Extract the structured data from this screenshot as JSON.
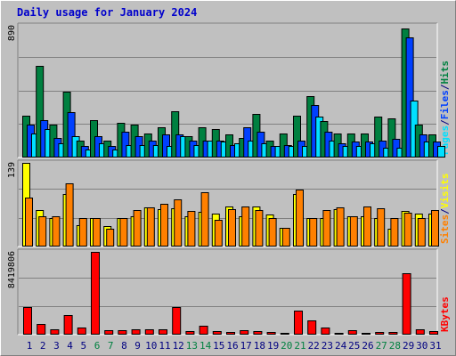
{
  "title": "Daily usage for January 2024",
  "colors": {
    "hits": "#008040",
    "files": "#0040ff",
    "pages": "#00e0ff",
    "visits": "#ffff00",
    "sites": "#ff8000",
    "kbytes": "#ff0000",
    "weekend_day": "#008040",
    "weekday": "#000080"
  },
  "chart_data": [
    {
      "type": "bar",
      "panel": "hits-files-pages",
      "ymax_label": "890",
      "ylim": [
        0,
        890
      ],
      "grid": true,
      "right_labels": [
        {
          "text": "Pages",
          "color": "#00e0ff"
        },
        {
          "text": "/",
          "color": "#000080"
        },
        {
          "text": "Files",
          "color": "#0040ff"
        },
        {
          "text": "/",
          "color": "#000080"
        },
        {
          "text": "Hits",
          "color": "#008040"
        }
      ],
      "categories": [
        "1",
        "2",
        "3",
        "4",
        "5",
        "6",
        "7",
        "8",
        "9",
        "10",
        "11",
        "12",
        "13",
        "14",
        "15",
        "16",
        "17",
        "18",
        "19",
        "20",
        "21",
        "22",
        "23",
        "24",
        "25",
        "26",
        "27",
        "28",
        "29",
        "30",
        "31"
      ],
      "series": [
        {
          "name": "Hits",
          "color": "#008040",
          "values": [
            280,
            620,
            220,
            440,
            110,
            250,
            110,
            230,
            220,
            160,
            200,
            310,
            140,
            200,
            190,
            150,
            130,
            290,
            110,
            160,
            280,
            410,
            240,
            160,
            160,
            160,
            270,
            260,
            870,
            220,
            150
          ]
        },
        {
          "name": "Files",
          "color": "#0040ff",
          "values": [
            220,
            250,
            130,
            300,
            70,
            140,
            70,
            170,
            140,
            110,
            150,
            150,
            110,
            110,
            110,
            80,
            200,
            170,
            70,
            80,
            110,
            350,
            170,
            90,
            100,
            100,
            110,
            120,
            810,
            150,
            100
          ]
        },
        {
          "name": "Pages",
          "color": "#00e0ff",
          "values": [
            160,
            190,
            90,
            140,
            50,
            90,
            50,
            80,
            80,
            80,
            70,
            140,
            80,
            110,
            100,
            90,
            110,
            90,
            70,
            70,
            70,
            270,
            110,
            70,
            70,
            90,
            60,
            60,
            380,
            100,
            70
          ]
        }
      ]
    },
    {
      "type": "bar",
      "panel": "visits-sites",
      "ymax_label": "139",
      "ylim": [
        0,
        139
      ],
      "grid": true,
      "right_labels": [
        {
          "text": "Sites",
          "color": "#ff8000"
        },
        {
          "text": "/",
          "color": "#000080"
        },
        {
          "text": "Visits",
          "color": "#ffff00"
        }
      ],
      "categories": [
        "1",
        "2",
        "3",
        "4",
        "5",
        "6",
        "7",
        "8",
        "9",
        "10",
        "11",
        "12",
        "13",
        "14",
        "15",
        "16",
        "17",
        "18",
        "19",
        "20",
        "21",
        "22",
        "23",
        "24",
        "25",
        "26",
        "27",
        "28",
        "29",
        "30",
        "31"
      ],
      "series": [
        {
          "name": "Visits",
          "color": "#ffff00",
          "values": [
            139,
            60,
            47,
            86,
            35,
            47,
            33,
            47,
            49,
            64,
            61,
            63,
            49,
            57,
            54,
            66,
            50,
            66,
            53,
            30,
            86,
            47,
            47,
            61,
            49,
            49,
            47,
            29,
            58,
            54,
            54
          ]
        },
        {
          "name": "Sites",
          "color": "#ff8000",
          "values": [
            80,
            49,
            49,
            104,
            47,
            47,
            29,
            46,
            60,
            64,
            70,
            78,
            59,
            90,
            43,
            61,
            66,
            60,
            47,
            30,
            94,
            47,
            60,
            64,
            49,
            66,
            63,
            47,
            55,
            47,
            60
          ]
        }
      ]
    },
    {
      "type": "bar",
      "panel": "kbytes",
      "ymax_label": "8419806",
      "ylim": [
        0,
        8419806
      ],
      "grid": true,
      "right_labels": [
        {
          "text": "KBytes",
          "color": "#ff0000"
        }
      ],
      "categories": [
        "1",
        "2",
        "3",
        "4",
        "5",
        "6",
        "7",
        "8",
        "9",
        "10",
        "11",
        "12",
        "13",
        "14",
        "15",
        "16",
        "17",
        "18",
        "19",
        "20",
        "21",
        "22",
        "23",
        "24",
        "25",
        "26",
        "27",
        "28",
        "29",
        "30",
        "31"
      ],
      "series": [
        {
          "name": "KBytes",
          "color": "#ff0000",
          "values": [
            2700000,
            1000000,
            500000,
            1900000,
            600000,
            8419806,
            400000,
            400000,
            500000,
            500000,
            500000,
            2700000,
            300000,
            800000,
            300000,
            200000,
            400000,
            300000,
            200000,
            100000,
            2400000,
            1400000,
            600000,
            100000,
            400000,
            100000,
            200000,
            200000,
            6200000,
            500000,
            300000
          ]
        }
      ]
    }
  ],
  "x_labels": [
    {
      "text": "1",
      "weekend": false
    },
    {
      "text": "2",
      "weekend": false
    },
    {
      "text": "3",
      "weekend": false
    },
    {
      "text": "4",
      "weekend": false
    },
    {
      "text": "5",
      "weekend": false
    },
    {
      "text": "6",
      "weekend": true
    },
    {
      "text": "7",
      "weekend": true
    },
    {
      "text": "8",
      "weekend": false
    },
    {
      "text": "9",
      "weekend": false
    },
    {
      "text": "10",
      "weekend": false
    },
    {
      "text": "11",
      "weekend": false
    },
    {
      "text": "12",
      "weekend": false
    },
    {
      "text": "13",
      "weekend": true
    },
    {
      "text": "14",
      "weekend": true
    },
    {
      "text": "15",
      "weekend": false
    },
    {
      "text": "16",
      "weekend": false
    },
    {
      "text": "17",
      "weekend": false
    },
    {
      "text": "18",
      "weekend": false
    },
    {
      "text": "19",
      "weekend": false
    },
    {
      "text": "20",
      "weekend": true
    },
    {
      "text": "21",
      "weekend": true
    },
    {
      "text": "22",
      "weekend": false
    },
    {
      "text": "23",
      "weekend": false
    },
    {
      "text": "24",
      "weekend": false
    },
    {
      "text": "25",
      "weekend": false
    },
    {
      "text": "26",
      "weekend": false
    },
    {
      "text": "27",
      "weekend": true
    },
    {
      "text": "28",
      "weekend": true
    },
    {
      "text": "29",
      "weekend": false
    },
    {
      "text": "30",
      "weekend": false
    },
    {
      "text": "31",
      "weekend": false
    }
  ]
}
